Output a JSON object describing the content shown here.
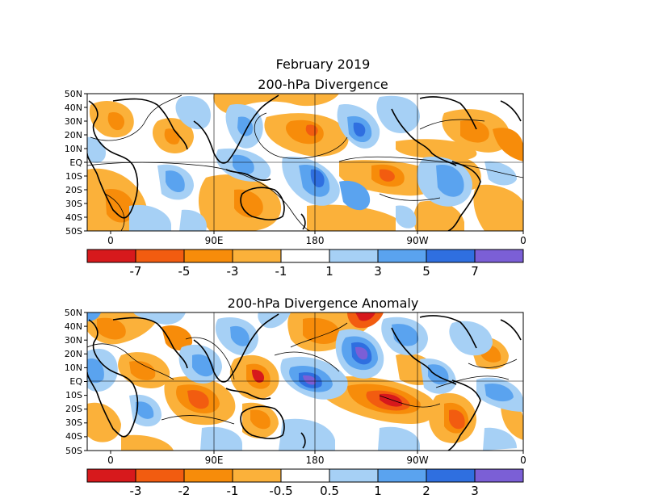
{
  "figure": {
    "month_title": "February 2019",
    "panels": [
      {
        "title": "200-hPa Divergence",
        "lat_labels": [
          "50N",
          "40N",
          "30N",
          "20N",
          "10N",
          "EQ",
          "10S",
          "20S",
          "30S",
          "40S",
          "50S"
        ],
        "lon_labels": [
          "0",
          "90E",
          "180",
          "90W",
          "0"
        ],
        "colorbar": {
          "colors": [
            "#d7191c",
            "#f25c10",
            "#f78c0a",
            "#fbb13a",
            "#ffffff",
            "#a6d0f5",
            "#5aa3ef",
            "#2f6fe0",
            "#7b5fd6"
          ],
          "labels": [
            "-7",
            "-5",
            "-3",
            "-1",
            "1",
            "3",
            "5",
            "7"
          ]
        }
      },
      {
        "title": "200-hPa Divergence Anomaly",
        "lat_labels": [
          "50N",
          "40N",
          "30N",
          "20N",
          "10N",
          "EQ",
          "10S",
          "20S",
          "30S",
          "40S",
          "50S"
        ],
        "lon_labels": [
          "0",
          "90E",
          "180",
          "90W",
          "0"
        ],
        "colorbar": {
          "colors": [
            "#d7191c",
            "#f25c10",
            "#f78c0a",
            "#fbb13a",
            "#ffffff",
            "#a6d0f5",
            "#5aa3ef",
            "#2f6fe0",
            "#7b5fd6"
          ],
          "labels": [
            "-3",
            "-2",
            "-1",
            "-0.5",
            "0.5",
            "1",
            "2",
            "3"
          ]
        }
      }
    ]
  }
}
